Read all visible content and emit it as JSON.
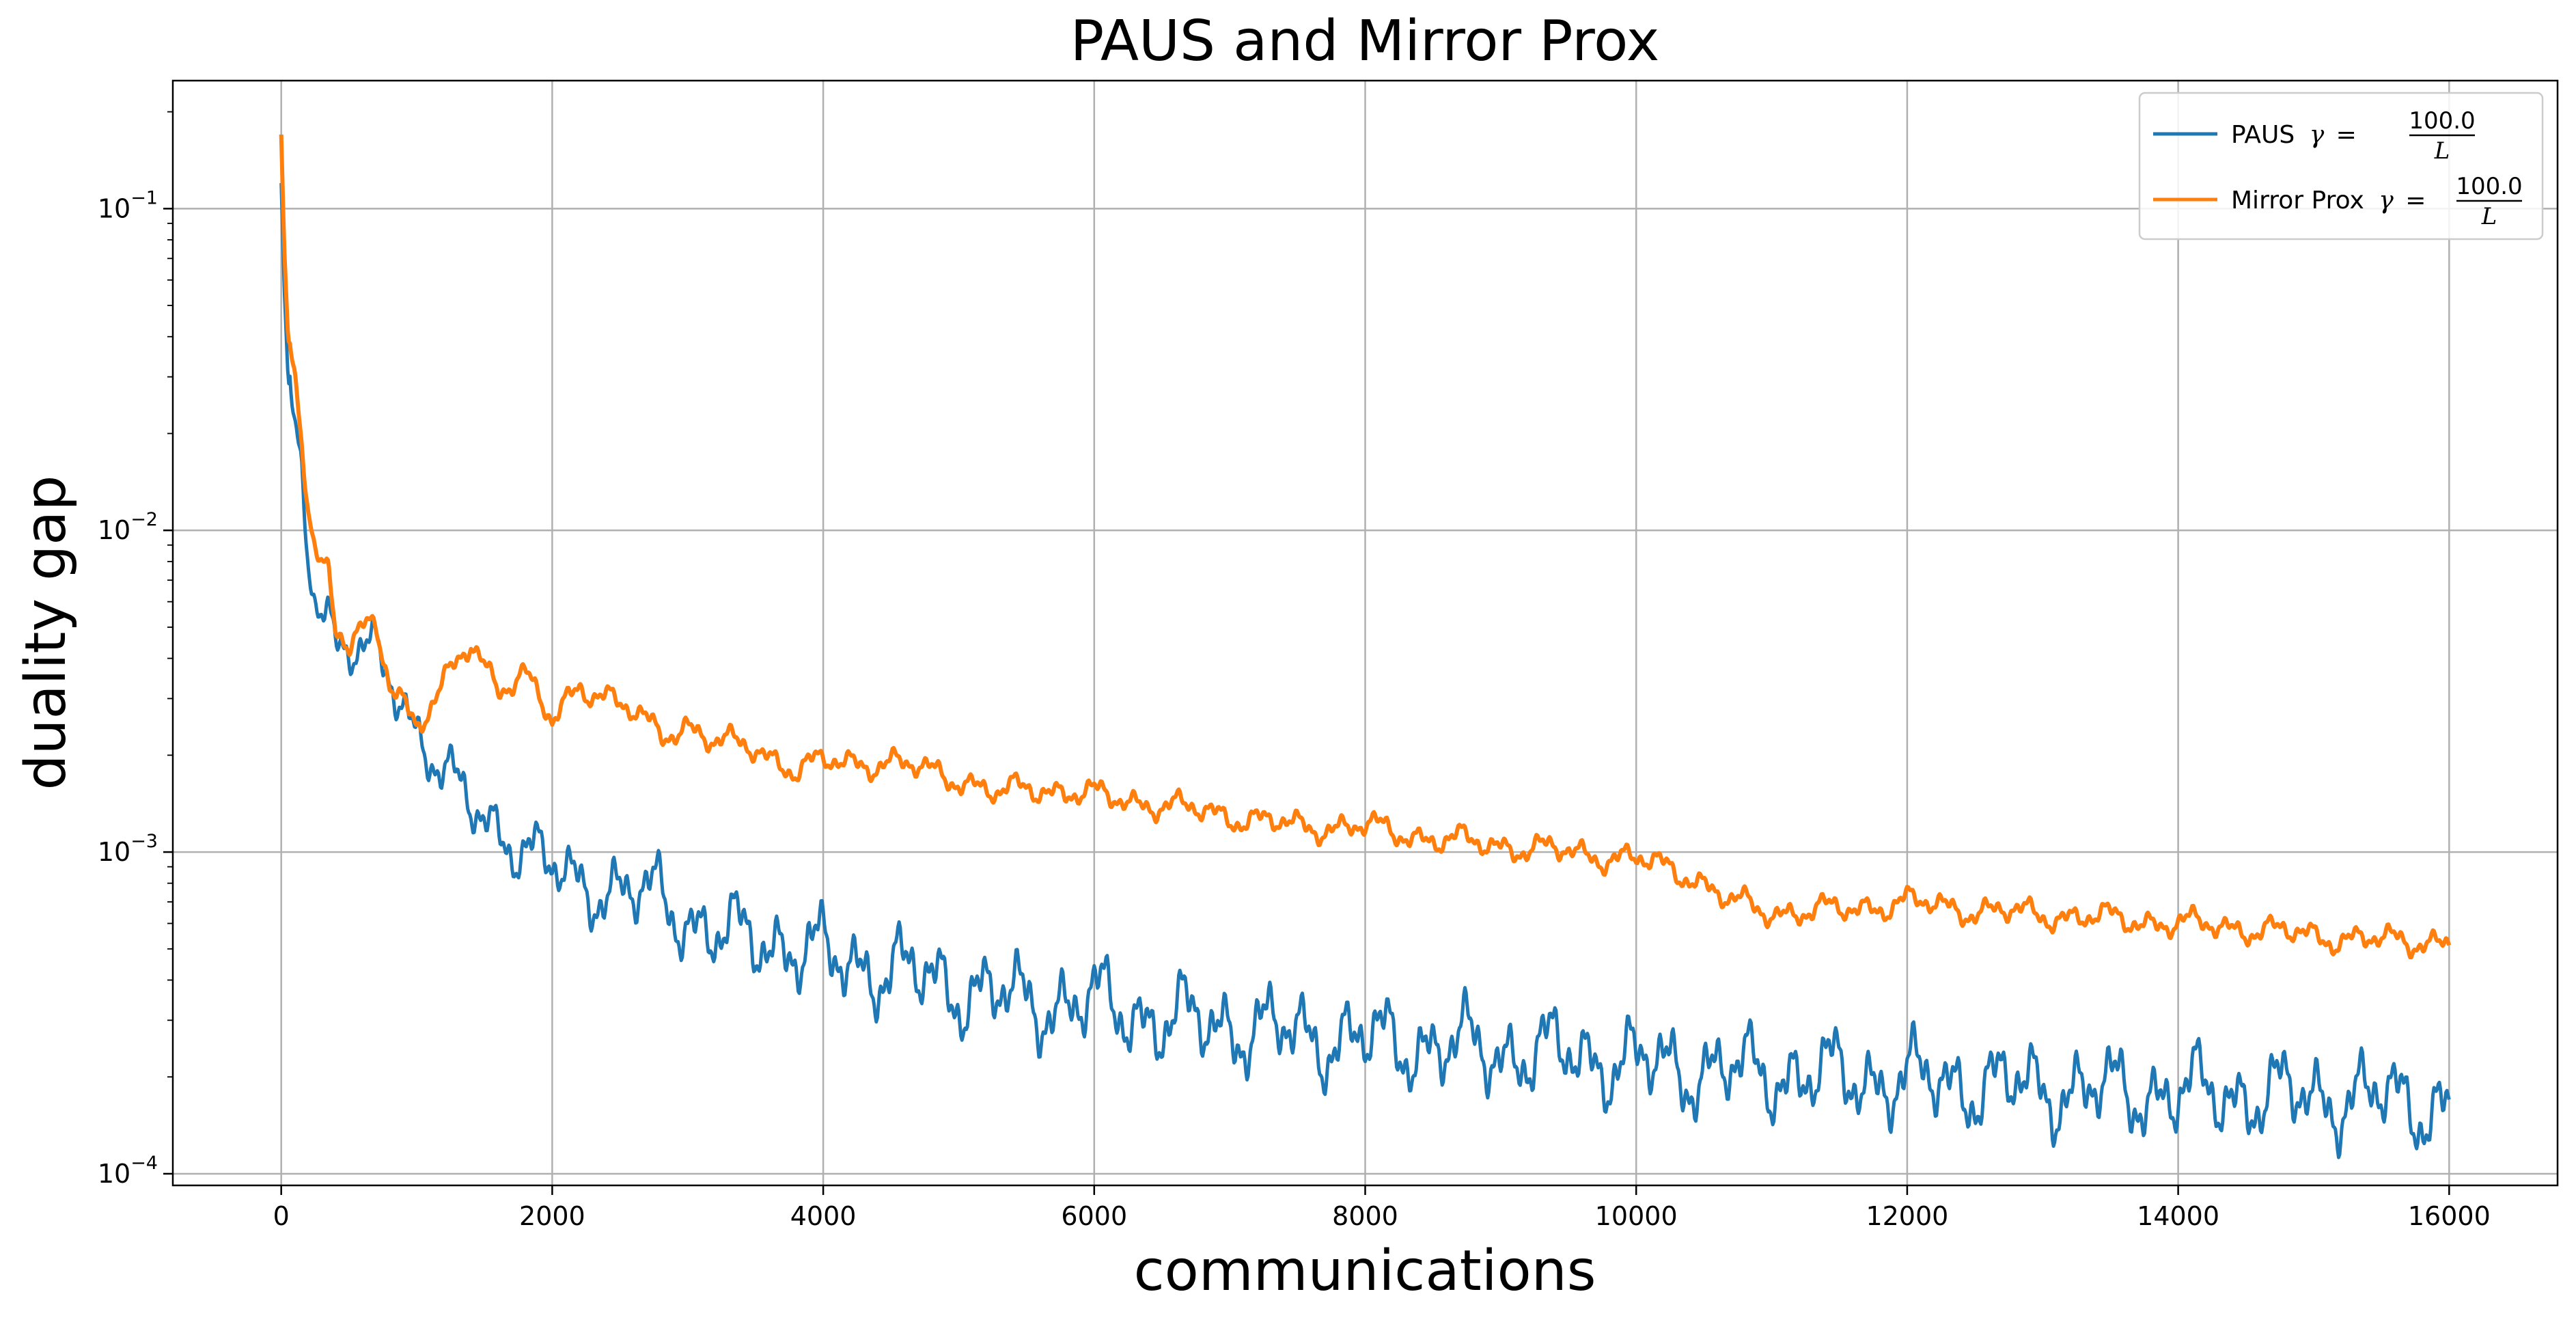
{
  "chart_data": {
    "type": "line",
    "title": "PAUS and Mirror Prox",
    "xlabel": "communications",
    "ylabel": "duality gap",
    "xlim": [
      -800,
      16800
    ],
    "ylim": [
      9.2e-05,
      0.25
    ],
    "yscale": "log",
    "grid": true,
    "legend_position": "top-right",
    "x_ticks": [
      {
        "value": 0,
        "label": "0"
      },
      {
        "value": 2000,
        "label": "2000"
      },
      {
        "value": 4000,
        "label": "4000"
      },
      {
        "value": 6000,
        "label": "6000"
      },
      {
        "value": 8000,
        "label": "8000"
      },
      {
        "value": 10000,
        "label": "10000"
      },
      {
        "value": 12000,
        "label": "12000"
      },
      {
        "value": 14000,
        "label": "14000"
      },
      {
        "value": 16000,
        "label": "16000"
      }
    ],
    "y_ticks": [
      {
        "value": 0.1,
        "base": "10",
        "exp": "−1"
      },
      {
        "value": 0.01,
        "base": "10",
        "exp": "−2"
      },
      {
        "value": 0.001,
        "base": "10",
        "exp": "−3"
      },
      {
        "value": 0.0001,
        "base": "10",
        "exp": "−4"
      }
    ],
    "series": [
      {
        "name": "PAUS γ = 100.0/L",
        "legend_prefix": "PAUS",
        "gamma_symbol": "γ",
        "gamma_numerator": "100.0",
        "gamma_denominator": "L",
        "color": "#1f77b4",
        "noise_amplitude": 0.14,
        "x": [
          0,
          20,
          50,
          100,
          150,
          200,
          250,
          300,
          350,
          400,
          500,
          600,
          700,
          800,
          900,
          1000,
          1200,
          1400,
          1600,
          1800,
          2000,
          2200,
          2400,
          2600,
          2800,
          3000,
          3200,
          3500,
          4000,
          4500,
          5000,
          5500,
          6000,
          6500,
          7000,
          7500,
          8000,
          8500,
          9000,
          9500,
          10000,
          10500,
          11000,
          11500,
          12000,
          12500,
          13000,
          13500,
          14000,
          14500,
          15000,
          15500,
          16000
        ],
        "y": [
          0.12,
          0.06,
          0.03,
          0.02,
          0.016,
          0.009,
          0.0065,
          0.006,
          0.0055,
          0.0045,
          0.0042,
          0.004,
          0.0041,
          0.0036,
          0.003,
          0.0024,
          0.0017,
          0.0014,
          0.0012,
          0.001,
          0.00088,
          0.00082,
          0.00076,
          0.00072,
          0.00075,
          0.00062,
          0.00054,
          0.00055,
          0.00047,
          0.00043,
          0.00038,
          0.00034,
          0.00034,
          0.0003,
          0.00029,
          0.00027,
          0.00026,
          0.00025,
          0.00024,
          0.000235,
          0.00022,
          0.00021,
          0.000205,
          0.0002,
          0.000195,
          0.00019,
          0.000185,
          0.00018,
          0.000178,
          0.000176,
          0.000174,
          0.000172,
          0.00016
        ]
      },
      {
        "name": "Mirror Prox γ = 100.0/L",
        "legend_prefix": "Mirror Prox",
        "gamma_symbol": "γ",
        "gamma_numerator": "100.0",
        "gamma_denominator": "L",
        "color": "#ff7f0e",
        "noise_amplitude": 0.045,
        "x": [
          0,
          20,
          50,
          100,
          150,
          200,
          250,
          300,
          350,
          400,
          500,
          600,
          700,
          800,
          900,
          1000,
          1200,
          1400,
          1600,
          1800,
          2000,
          2200,
          2400,
          2600,
          2800,
          3000,
          3200,
          3500,
          3800,
          4000,
          4500,
          5000,
          5300,
          5500,
          6000,
          6500,
          7000,
          7500,
          8000,
          8500,
          9000,
          9500,
          10000,
          10400,
          10700,
          11000,
          11500,
          12000,
          12500,
          13000,
          13500,
          14000,
          14500,
          15000,
          15500,
          16000
        ],
        "y": [
          0.17,
          0.08,
          0.04,
          0.03,
          0.02,
          0.012,
          0.009,
          0.008,
          0.0075,
          0.005,
          0.0044,
          0.0048,
          0.0049,
          0.0034,
          0.003,
          0.0025,
          0.0033,
          0.0044,
          0.0033,
          0.0036,
          0.0025,
          0.0033,
          0.0031,
          0.0027,
          0.0023,
          0.0025,
          0.0022,
          0.0021,
          0.0018,
          0.0019,
          0.0019,
          0.0017,
          0.0015,
          0.0016,
          0.0015,
          0.0014,
          0.0013,
          0.0012,
          0.0012,
          0.0011,
          0.00105,
          0.001,
          0.00095,
          0.00085,
          0.0007,
          0.00065,
          0.00066,
          0.0007,
          0.00066,
          0.00064,
          0.00062,
          0.0006,
          0.00058,
          0.00055,
          0.00053,
          0.00053
        ]
      }
    ]
  }
}
